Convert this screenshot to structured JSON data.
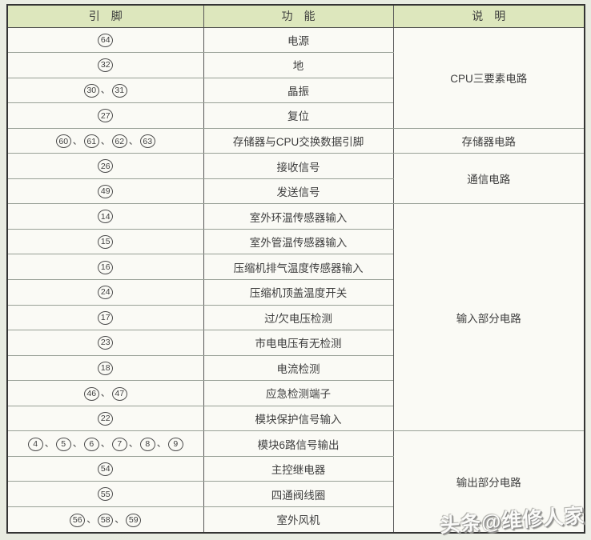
{
  "table": {
    "headers": [
      "引　脚",
      "功　能",
      "说　明"
    ],
    "rows": [
      {
        "pins": [
          64
        ],
        "function": "电源",
        "group": "CPU三要素电路",
        "group_rowspan": 4
      },
      {
        "pins": [
          32
        ],
        "function": "地"
      },
      {
        "pins": [
          30,
          31
        ],
        "function": "晶振"
      },
      {
        "pins": [
          27
        ],
        "function": "复位"
      },
      {
        "pins": [
          60,
          61,
          62,
          63
        ],
        "function": "存储器与CPU交换数据引脚",
        "group": "存储器电路",
        "group_rowspan": 1
      },
      {
        "pins": [
          26
        ],
        "function": "接收信号",
        "group": "通信电路",
        "group_rowspan": 2
      },
      {
        "pins": [
          49
        ],
        "function": "发送信号"
      },
      {
        "pins": [
          14
        ],
        "function": "室外环温传感器输入",
        "group": "输入部分电路",
        "group_rowspan": 9
      },
      {
        "pins": [
          15
        ],
        "function": "室外管温传感器输入"
      },
      {
        "pins": [
          16
        ],
        "function": "压缩机排气温度传感器输入"
      },
      {
        "pins": [
          24
        ],
        "function": "压缩机顶盖温度开关"
      },
      {
        "pins": [
          17
        ],
        "function": "过/欠电压检测"
      },
      {
        "pins": [
          23
        ],
        "function": "市电电压有无检测"
      },
      {
        "pins": [
          18
        ],
        "function": "电流检测"
      },
      {
        "pins": [
          46,
          47
        ],
        "function": "应急检测端子"
      },
      {
        "pins": [
          22
        ],
        "function": "模块保护信号输入"
      },
      {
        "pins": [
          4,
          5,
          6,
          7,
          8,
          9
        ],
        "function": "模块6路信号输出",
        "group": "输出部分电路",
        "group_rowspan": 4
      },
      {
        "pins": [
          54
        ],
        "function": "主控继电器"
      },
      {
        "pins": [
          55
        ],
        "function": "四通阀线圈"
      },
      {
        "pins": [
          56,
          58,
          59
        ],
        "function": "室外风机"
      }
    ],
    "pin_separator": "、"
  },
  "watermark": {
    "text": "头条@维修人家"
  },
  "colors": {
    "header_bg": "#dde7bd",
    "page_bg": "#e9ece2",
    "cell_bg": "#fafaf5",
    "border_dark": "#343434",
    "border_vertical": "#565656",
    "border_horizontal": "#98a096",
    "text": "#3e3e3e"
  }
}
